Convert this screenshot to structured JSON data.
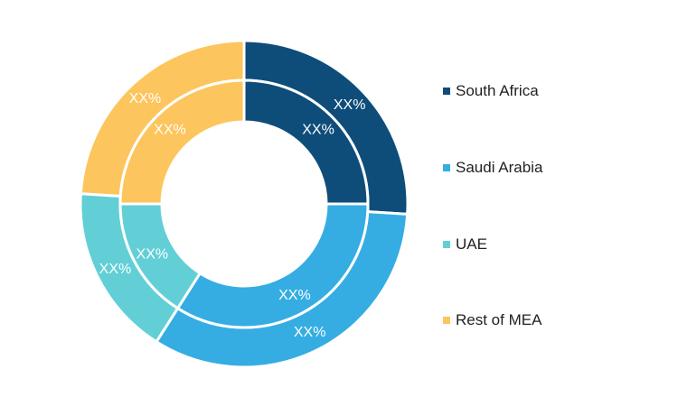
{
  "chart_data": {
    "type": "pie",
    "categories": [
      "South Africa",
      "Saudi Arabia",
      "UAE",
      "Rest of MEA"
    ],
    "colors": [
      "#0e4d7a",
      "#35ade3",
      "#62cfd7",
      "#fdc55d"
    ],
    "series": [
      {
        "ring": "outer",
        "values": [
          26,
          33,
          17,
          24
        ],
        "labels": [
          "XX%",
          "XX%",
          "XX%",
          "XX%"
        ]
      },
      {
        "ring": "inner",
        "values": [
          25,
          34,
          16,
          25
        ],
        "labels": [
          "XX%",
          "XX%",
          "XX%",
          "XX%"
        ]
      }
    ],
    "legend": {
      "placement": "right",
      "entries": [
        "South Africa",
        "Saudi Arabia",
        "UAE",
        "Rest of MEA"
      ]
    }
  }
}
